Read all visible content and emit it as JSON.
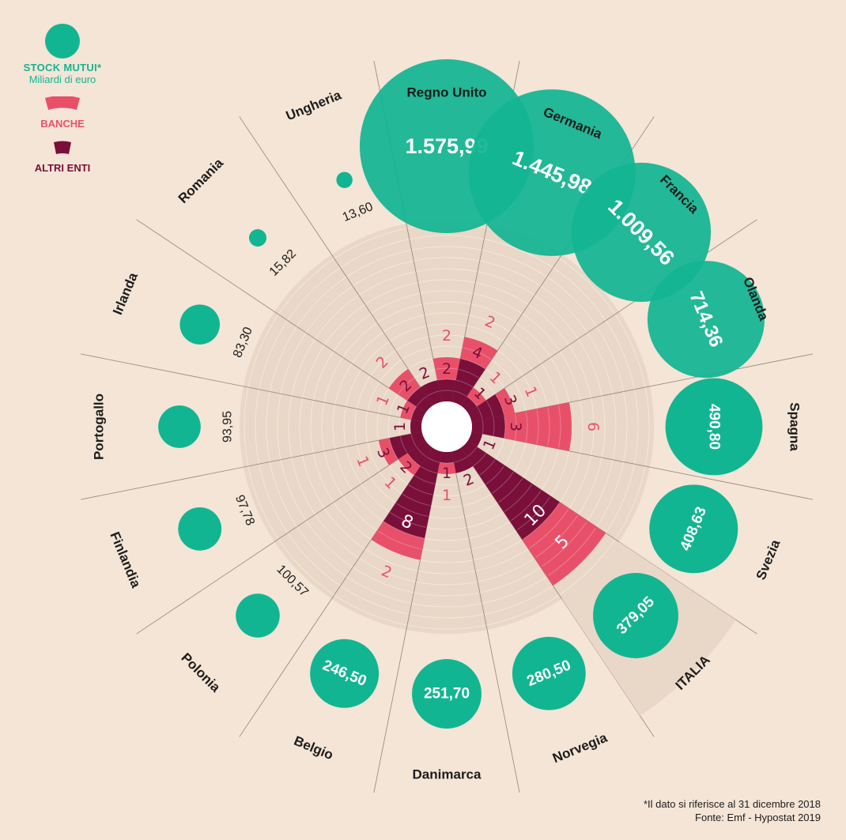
{
  "legend": {
    "stock_title": "STOCK MUTUI*",
    "stock_unit": "Miliardi di euro",
    "banche": "BANCHE",
    "altri": "ALTRI ENTI"
  },
  "note": {
    "line1": "*Il dato si riferisce al 31 dicembre 2018",
    "line2": "Fonte: Emf - Hypostat 2019"
  },
  "colors": {
    "stock": "#12b592",
    "banche": "#e8506a",
    "altri": "#7a0f3a",
    "ring": "#e9d7c7",
    "background": "#f4e5d6"
  },
  "chart_data": {
    "type": "radial-bar-bubble",
    "unit_stock": "Miliardi di euro",
    "countries": [
      {
        "name": "Regno Unito",
        "stock": 1575.99,
        "stock_label": "1.575,99",
        "banche": 2,
        "altri": 2
      },
      {
        "name": "Germania",
        "stock": 1445.98,
        "stock_label": "1.445,98",
        "banche": 2,
        "altri": 4
      },
      {
        "name": "Francia",
        "stock": 1009.56,
        "stock_label": "1.009,56",
        "banche": 1,
        "altri": 1
      },
      {
        "name": "Olanda",
        "stock": 714.36,
        "stock_label": "714,36",
        "banche": 1,
        "altri": 3
      },
      {
        "name": "Spagna",
        "stock": 490.8,
        "stock_label": "490,80",
        "banche": 6,
        "altri": 3
      },
      {
        "name": "Svezia",
        "stock": 408.63,
        "stock_label": "408,63",
        "banche": 0,
        "altri": 1
      },
      {
        "name": "ITALIA",
        "stock": 379.05,
        "stock_label": "379,05",
        "banche": 5,
        "altri": 10
      },
      {
        "name": "Norvegia",
        "stock": 280.5,
        "stock_label": "280,50",
        "banche": 0,
        "altri": 2
      },
      {
        "name": "Danimarca",
        "stock": 251.7,
        "stock_label": "251,70",
        "banche": 1,
        "altri": 1
      },
      {
        "name": "Belgio",
        "stock": 246.5,
        "stock_label": "246,50",
        "banche": 2,
        "altri": 8
      },
      {
        "name": "Polonia",
        "stock": 100.57,
        "stock_label": "100,57",
        "banche": 1,
        "altri": 2
      },
      {
        "name": "Finlandia",
        "stock": 97.78,
        "stock_label": "97,78",
        "banche": 1,
        "altri": 3
      },
      {
        "name": "Portogallo",
        "stock": 93.95,
        "stock_label": "93,95",
        "banche": 0,
        "altri": 1
      },
      {
        "name": "Irlanda",
        "stock": 83.3,
        "stock_label": "83,30",
        "banche": 1,
        "altri": 1
      },
      {
        "name": "Romania",
        "stock": 15.82,
        "stock_label": "15,82",
        "banche": 2,
        "altri": 2
      },
      {
        "name": "Ungheria",
        "stock": 13.6,
        "stock_label": "13,60",
        "banche": 0,
        "altri": 2
      }
    ]
  }
}
